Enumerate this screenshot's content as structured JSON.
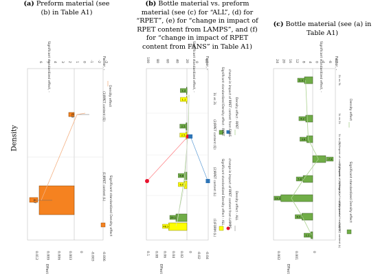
{
  "side_label": "Density",
  "panel_headers": {
    "a": {
      "tag": "(a)",
      "rest": " Preform material (see (b) in Table A1)"
    },
    "b": {
      "tag": "(b)",
      "rest": " Bottle material vs. preform material (see (c) for “ALL”, (d) for “RPET”, (e) for “change in impact of RPET content from LAMPS”, and (f) for “change in impact of RPET content from FANS” in Table A1)"
    },
    "c": {
      "tag": "(c)",
      "rest": " Bottle material (see (a) in Table A1)"
    }
  },
  "chart_data": [
    {
      "id": "a",
      "type": "bar",
      "orientation": "rotated",
      "effect_axis": {
        "label": "Effect",
        "ticks": [
          "0.012",
          "0.009",
          "0.006",
          "0.003",
          "0",
          "-0.003",
          "-0.006"
        ]
      },
      "sse_axis": {
        "label": "Significant standardized effect, -",
        "ticks": [
          "6",
          "5",
          "4",
          "3",
          "2",
          "1",
          "0",
          "-1",
          "-2",
          "-3"
        ]
      },
      "factor_label": "Factor, -",
      "factors": [
        "(1)RPET content (L)",
        "(1)RPET content (Q)"
      ],
      "bars": [
        {
          "factor": "(1)RPET content (L)",
          "effect": 0.011,
          "sse": 4.7,
          "label": "4.7",
          "color": "#f58220"
        },
        {
          "factor": "(1)RPET content (Q)",
          "effect": 0.001,
          "sse": 0.3,
          "label": "0.3",
          "color": "#f58220"
        }
      ],
      "legend": [
        "Significant standardized Density effect",
        "Density effect"
      ]
    },
    {
      "id": "b",
      "type": "bar",
      "orientation": "rotated",
      "effect_axis": {
        "label": "Effect",
        "ticks": [
          "0.1",
          "0.08",
          "0.06",
          "0.04",
          "0.02",
          "0",
          "-0.02",
          "-0.04"
        ]
      },
      "sse_axis": {
        "label": "Significant standardized effect, -",
        "ticks": [
          "100",
          "80",
          "60",
          "40",
          "20",
          "0",
          "-20"
        ]
      },
      "factor_label": "Factor, -",
      "factors": [
        "(1)FORM (L)",
        "(2)RPET content (L)",
        "(2)RPET content (Q)",
        "1L vs 2L"
      ],
      "bars_all": [
        {
          "factor": "(1)FORM (L)",
          "effect": 0.045,
          "sse": 48.3,
          "label": "48.3",
          "color": "#ffff00"
        },
        {
          "factor": "(2)RPET content (L)",
          "effect": 0.008,
          "sse": 6.6,
          "label": "6.6",
          "color": "#ffff00"
        },
        {
          "factor": "(2)RPET content (Q)",
          "effect": 0.003,
          "sse": 2.5,
          "label": "2.5",
          "color": "#ffff00"
        },
        {
          "factor": "1L vs 2L",
          "effect": 0.001,
          "sse": 1.1,
          "label": "1.1",
          "color": "#ffff00"
        }
      ],
      "bars_rpet": [
        {
          "factor": "(1)FORM (L)",
          "effect": 0.03,
          "sse": 29.1,
          "label": "29.1",
          "color": "#70ad47"
        },
        {
          "factor": "(2)RPET content (L)",
          "effect": 0.007,
          "sse": 6.8,
          "label": "6.8",
          "color": "#70ad47"
        },
        {
          "factor": "(2)RPET content (Q)",
          "effect": 0.002,
          "sse": 2.5,
          "label": "2.5",
          "color": "#70ad47"
        },
        {
          "factor": "1L vs 2L",
          "effect": 0.001,
          "sse": 1.2,
          "label": "1.2",
          "color": "#70ad47"
        }
      ],
      "lamps_points": [
        {
          "factor": "(2)RPET content (L)",
          "effect": 0.08
        },
        {
          "factor": "(2)RPET content (Q)",
          "effect": -0.002
        }
      ],
      "fans_points": [
        {
          "factor": "(2)RPET content (L)",
          "effect": -0.042
        },
        {
          "factor": "(2)RPET content (Q)",
          "effect": -0.007
        }
      ],
      "legend": [
        "Significant standardized Density effect - ALL",
        "change in impact of RPET content from LAMPS",
        "Density effect - ALL",
        "Significant standardized Density effect - RPET",
        "change in impact of RPET content from FANS",
        "Density effect - RPET"
      ]
    },
    {
      "id": "c",
      "type": "bar",
      "orientation": "rotated",
      "effect_axis": {
        "label": "Effect",
        "ticks": [
          "0.002",
          "0.001",
          "0"
        ]
      },
      "sse_axis": {
        "label": "Significant standardized effect, -",
        "ticks": [
          "24",
          "20",
          "16",
          "12",
          "8",
          "4",
          "0",
          "-4",
          "-8",
          "-12"
        ]
      },
      "factor_label": "Factor, -",
      "factors": [
        "(1)RPET content (L)",
        "(2)Degree of heating (L)",
        "(3)Degree of heating bonds",
        "(2)Degree of cooling (L)",
        "(3)Degree of cooling bonds",
        "1L vs 2L",
        "1L vs 2L",
        "2L vs 3L"
      ],
      "bars": [
        {
          "factor": "(1)RPET content (L)",
          "effect": 6e-05,
          "sse": 1.1,
          "label": "1.1",
          "color": "#70ad47"
        },
        {
          "factor": "(2)Degree of heating (L)",
          "effect": 0.00058,
          "sse": 6.5,
          "label": "6.5",
          "color": "#70ad47"
        },
        {
          "factor": "(3)Degree of heating bonds",
          "effect": 0.0012,
          "sse": 19.3,
          "label": "19.3",
          "color": "#70ad47"
        },
        {
          "factor": "(2)Degree of cooling (L)",
          "effect": 0.0005,
          "sse": 5.8,
          "label": "5.8",
          "color": "#70ad47"
        },
        {
          "factor": "(3)Degree of cooling bonds",
          "effect": -0.00032,
          "sse": -7.9,
          "label": "-7.9",
          "color": "#70ad47"
        },
        {
          "factor": "1L vs 2L",
          "effect": 0.00025,
          "sse": 3.6,
          "label": "3.6",
          "color": "#70ad47"
        },
        {
          "factor": "1L vs 2L",
          "effect": 0.0003,
          "sse": 4.2,
          "label": "4.2",
          "color": "#70ad47"
        },
        {
          "factor": "2L vs 3L",
          "effect": 0.0004,
          "sse": 5.0,
          "label": "5.0",
          "color": "#70ad47"
        }
      ],
      "legend": [
        "Significant standardized Density effect",
        "Density effect"
      ]
    }
  ]
}
